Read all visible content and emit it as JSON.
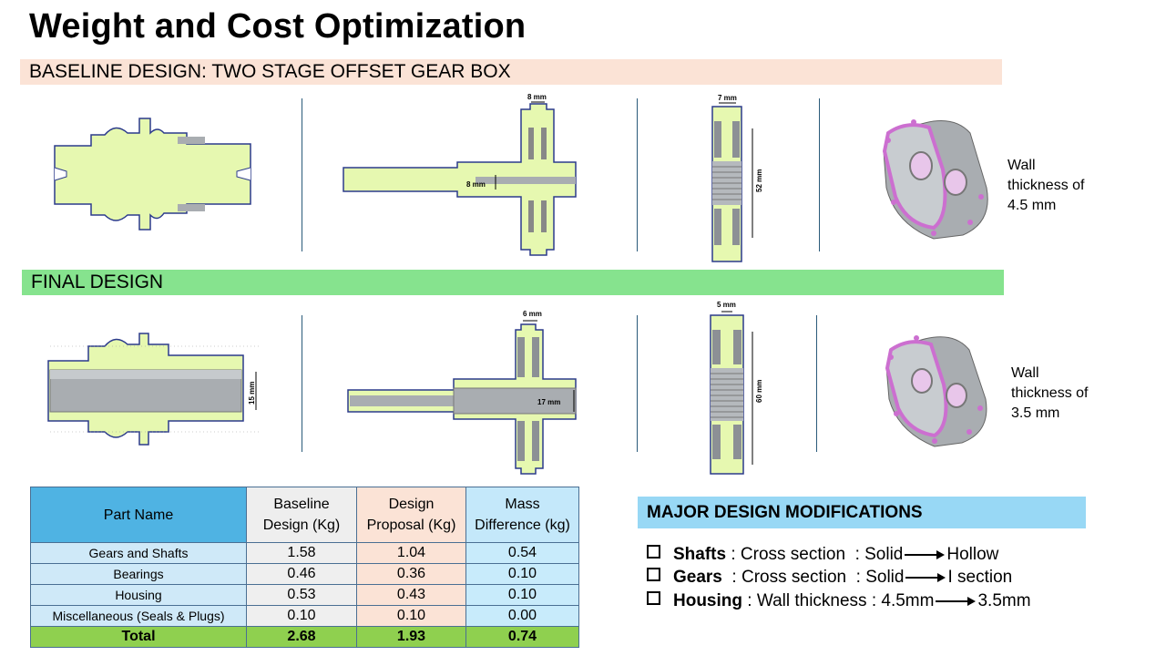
{
  "title": "Weight and Cost Optimization",
  "baseline": {
    "heading": "BASELINE DESIGN: TWO STAGE OFFSET GEAR BOX",
    "gear_dim": "8 mm",
    "shaft_dim": "8 mm",
    "bearing_width": "7 mm",
    "bearing_height": "52 mm",
    "wall_label": [
      "Wall",
      "thickness of",
      "4.5 mm"
    ]
  },
  "final": {
    "heading": "FINAL DESIGN",
    "shaft_dim": "15 mm",
    "gear_dim": "6 mm",
    "gear_bore_dim": "17 mm",
    "bearing_width": "5 mm",
    "bearing_height": "60 mm",
    "wall_label": [
      "Wall",
      "thickness of",
      "3.5 mm"
    ]
  },
  "table": {
    "headers": [
      [
        "Part Name"
      ],
      [
        "Baseline",
        "Design (Kg)"
      ],
      [
        "Design",
        "Proposal (Kg)"
      ],
      [
        "Mass",
        "Difference (kg)"
      ]
    ],
    "rows": [
      [
        "Gears and Shafts",
        "1.58",
        "1.04",
        "0.54"
      ],
      [
        "Bearings",
        "0.46",
        "0.36",
        "0.10"
      ],
      [
        "Housing",
        "0.53",
        "0.43",
        "0.10"
      ],
      [
        "Miscellaneous (Seals & Plugs)",
        "0.10",
        "0.10",
        "0.00"
      ]
    ],
    "total": [
      "Total",
      "2.68",
      "1.93",
      "0.74"
    ]
  },
  "modifications": {
    "heading": "MAJOR DESIGN MODIFICATIONS",
    "items": [
      {
        "part": "Shafts",
        "desc": " : Cross section  : Solid",
        "to": "Hollow"
      },
      {
        "part": "Gears",
        "desc": "  : Cross section  : Solid",
        "to": "I section"
      },
      {
        "part": "Housing",
        "desc": " : Wall thickness : 4.5mm",
        "to": "3.5mm"
      }
    ]
  },
  "colors": {
    "part_fill": "#e6f8b0",
    "part_outline": "#2b3a8c",
    "metal": "#a9adb1",
    "housing_edge": "#cc6fd0"
  }
}
